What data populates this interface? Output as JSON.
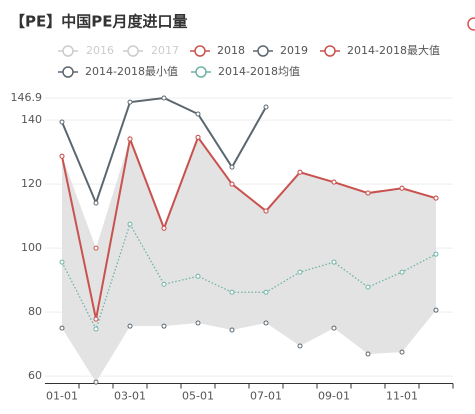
{
  "chart_data": {
    "type": "line",
    "title": "【PE】中国PE月度进口量",
    "categories": [
      "01-01",
      null,
      "03-01",
      null,
      "05-01",
      null,
      "07-01",
      null,
      "09-01",
      null,
      "11-01",
      null
    ],
    "legend_inactive": [
      "2016",
      "2017"
    ],
    "inactive_color": "#cccccc",
    "series": [
      {
        "name": "2018",
        "color": "#c9524e",
        "style": "line",
        "values": [
          128.7,
          77.8,
          134.1,
          106.2,
          134.6,
          120,
          111.6,
          123.7,
          120.6,
          117.2,
          118.7,
          115.6
        ]
      },
      {
        "name": "2019",
        "color": "#5b6770",
        "style": "line",
        "values": [
          139.4,
          114.1,
          145.6,
          146.9,
          141.9,
          125.3,
          144.1,
          null,
          null,
          null,
          null,
          null
        ]
      },
      {
        "name": "2014-2018最大值",
        "color": "#c9524e",
        "style": "band-top",
        "values": [
          128.7,
          100,
          134.1,
          106.2,
          134.6,
          120,
          111.6,
          123.7,
          120.6,
          117.2,
          118.7,
          115.6
        ]
      },
      {
        "name": "2014-2018最小值",
        "color": "#5b6770",
        "style": "band-bottom",
        "values": [
          75,
          58.1,
          75.6,
          75.6,
          76.6,
          74.4,
          76.6,
          69.4,
          75,
          66.9,
          67.5,
          80.6
        ]
      },
      {
        "name": "2014-2018均值",
        "color": "#6fb3a6",
        "style": "dotted",
        "values": [
          95.6,
          74.7,
          107.5,
          88.7,
          91.2,
          86.2,
          86.2,
          92.5,
          95.6,
          87.8,
          92.5,
          98.1
        ]
      }
    ],
    "band_color": "#e3e3e3",
    "ylim": [
      58,
      146.9
    ],
    "yticks": [
      60,
      80,
      100,
      120,
      140,
      146.9
    ],
    "grid": true
  }
}
